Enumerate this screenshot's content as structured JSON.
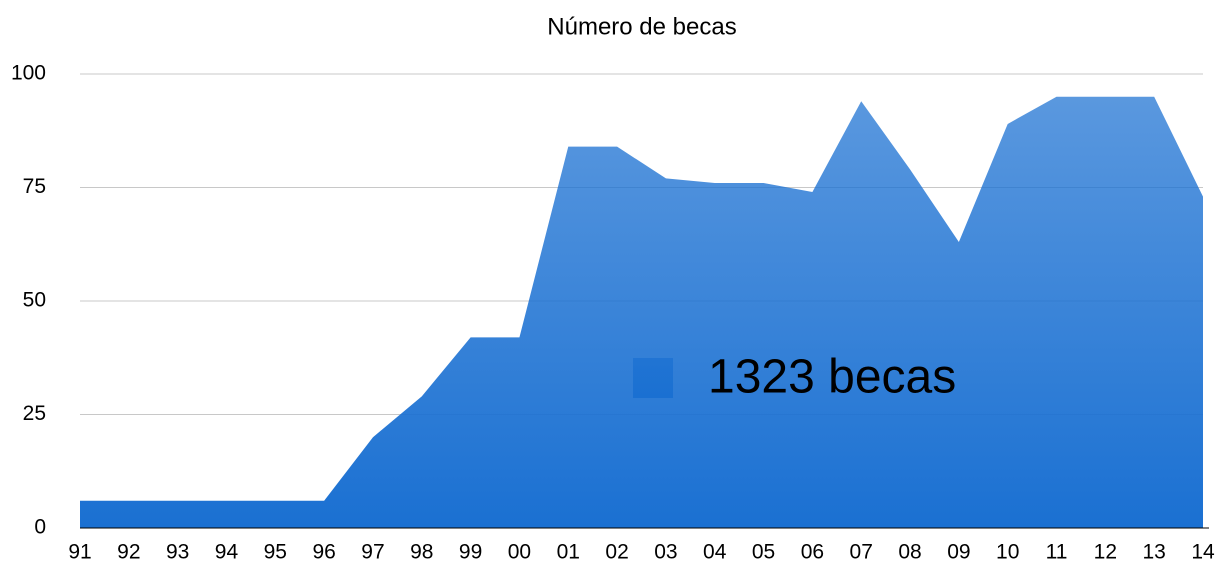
{
  "chart_data": {
    "type": "area",
    "title": "Número de becas",
    "categories": [
      "91",
      "92",
      "93",
      "94",
      "95",
      "96",
      "97",
      "98",
      "99",
      "00",
      "01",
      "02",
      "03",
      "04",
      "05",
      "06",
      "07",
      "08",
      "09",
      "10",
      "11",
      "12",
      "13",
      "14"
    ],
    "series": [
      {
        "name": "1323 becas",
        "color": "#1a70d2",
        "values": [
          6,
          6,
          6,
          6,
          6,
          6,
          20,
          29,
          42,
          42,
          84,
          84,
          77,
          76,
          76,
          74,
          94,
          79,
          63,
          89,
          95,
          95,
          95,
          73
        ]
      }
    ],
    "ylim": [
      0,
      100
    ],
    "yticks": [
      0,
      25,
      50,
      75,
      100
    ],
    "grid": true
  }
}
